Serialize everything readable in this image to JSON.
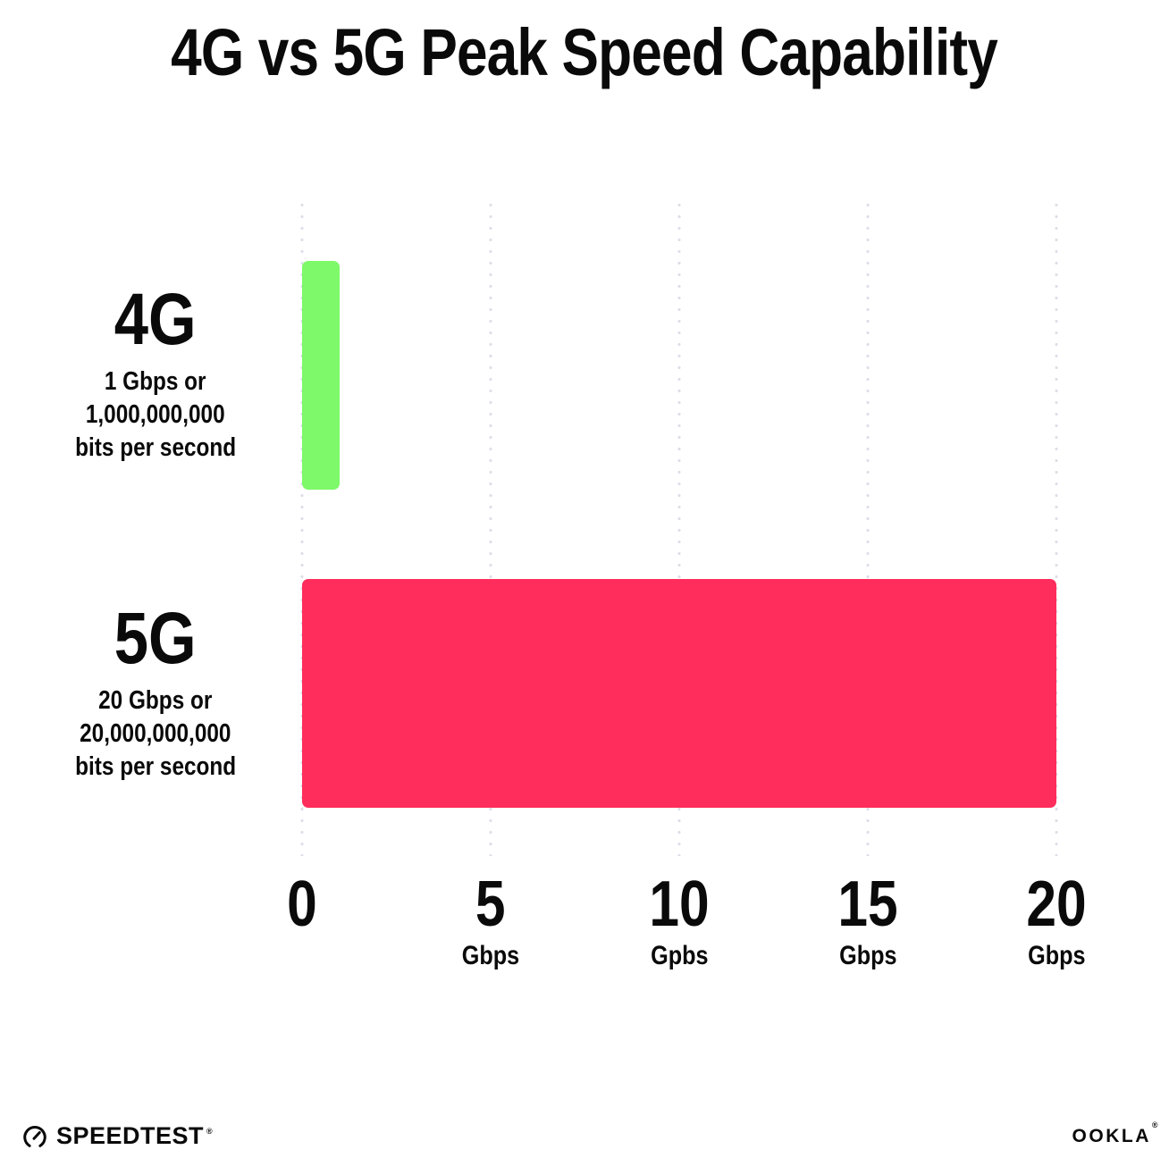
{
  "title": "4G vs 5G Peak Speed Capability",
  "chart_data": {
    "type": "bar",
    "orientation": "horizontal",
    "title": "4G vs 5G Peak Speed Capability",
    "xlabel": "Gbps",
    "xlim": [
      0,
      20
    ],
    "grid": "dotted vertical gridlines at each tick",
    "grid_color": "#dedee9",
    "categories": [
      "4G",
      "5G"
    ],
    "values": [
      1,
      20
    ],
    "x_ticks": [
      {
        "value": 0,
        "label": "0",
        "unit": ""
      },
      {
        "value": 5,
        "label": "5",
        "unit": "Gbps"
      },
      {
        "value": 10,
        "label": "10",
        "unit": "Gpbs"
      },
      {
        "value": 15,
        "label": "15",
        "unit": "Gbps"
      },
      {
        "value": 20,
        "label": "20",
        "unit": "Gbps"
      }
    ],
    "bars": [
      {
        "category": "4G",
        "value": 1,
        "color": "#7DF969",
        "description_lines": [
          "1 Gbps or",
          "1,000,000,000",
          "bits per second"
        ]
      },
      {
        "category": "5G",
        "value": 20,
        "color": "#FF2D5B",
        "description_lines": [
          "20 Gbps or",
          "20,000,000,000",
          "bits per second"
        ]
      }
    ]
  },
  "footer": {
    "speedtest_label": "SPEEDTEST",
    "speedtest_mark": "®",
    "ookla_label": "OOKLA",
    "ookla_mark": "®"
  }
}
